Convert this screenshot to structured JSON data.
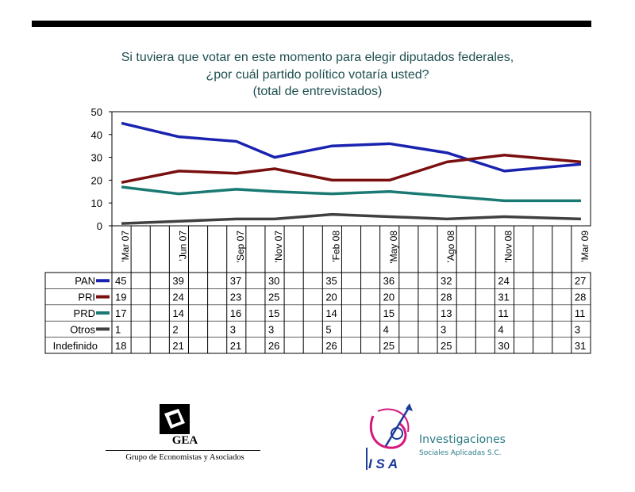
{
  "title": {
    "line1": "Si tuviera que votar en este momento para elegir diputados federales,",
    "line2": "¿por cuál partido político votaría usted?",
    "line3": "(total de entrevistados)"
  },
  "chart_data": {
    "type": "line",
    "y_ticks": [
      "50",
      "40",
      "30",
      "20",
      "10",
      "0"
    ],
    "ylim": [
      0,
      50
    ],
    "categories": [
      "'Mar 07",
      "'Jun 07",
      "'Sep 07",
      "'Nov 07",
      "'Feb 08",
      "'May 08",
      "'Ago 08",
      "'Nov 08",
      "'Mar 09"
    ],
    "category_slots": [
      0,
      3,
      6,
      8,
      11,
      14,
      17,
      20,
      24
    ],
    "slot_count": 25,
    "series": [
      {
        "name": "PAN",
        "color": "#1a23b0",
        "values": [
          45,
          39,
          37,
          30,
          35,
          36,
          32,
          24,
          27
        ],
        "plotted": true
      },
      {
        "name": "PRI",
        "color": "#7a0f0f",
        "values": [
          19,
          24,
          23,
          25,
          20,
          20,
          28,
          31,
          28
        ],
        "plotted": true
      },
      {
        "name": "PRD",
        "color": "#1a7a73",
        "values": [
          17,
          14,
          16,
          15,
          14,
          15,
          13,
          11,
          11
        ],
        "plotted": true
      },
      {
        "name": "Otros",
        "color": "#404040",
        "values": [
          1,
          2,
          3,
          3,
          5,
          4,
          3,
          4,
          3
        ],
        "plotted": true
      },
      {
        "name": "Indefinido",
        "color": "",
        "values": [
          18,
          21,
          21,
          26,
          26,
          25,
          25,
          30,
          31
        ],
        "plotted": false
      }
    ]
  },
  "logos": {
    "gea_name": "GEA",
    "gea_subtitle": "Grupo de Economistas y Asociados",
    "isa_mark": "I S A",
    "isa_name": "Investigaciones",
    "isa_subtitle": "Sociales Aplicadas S.C."
  }
}
